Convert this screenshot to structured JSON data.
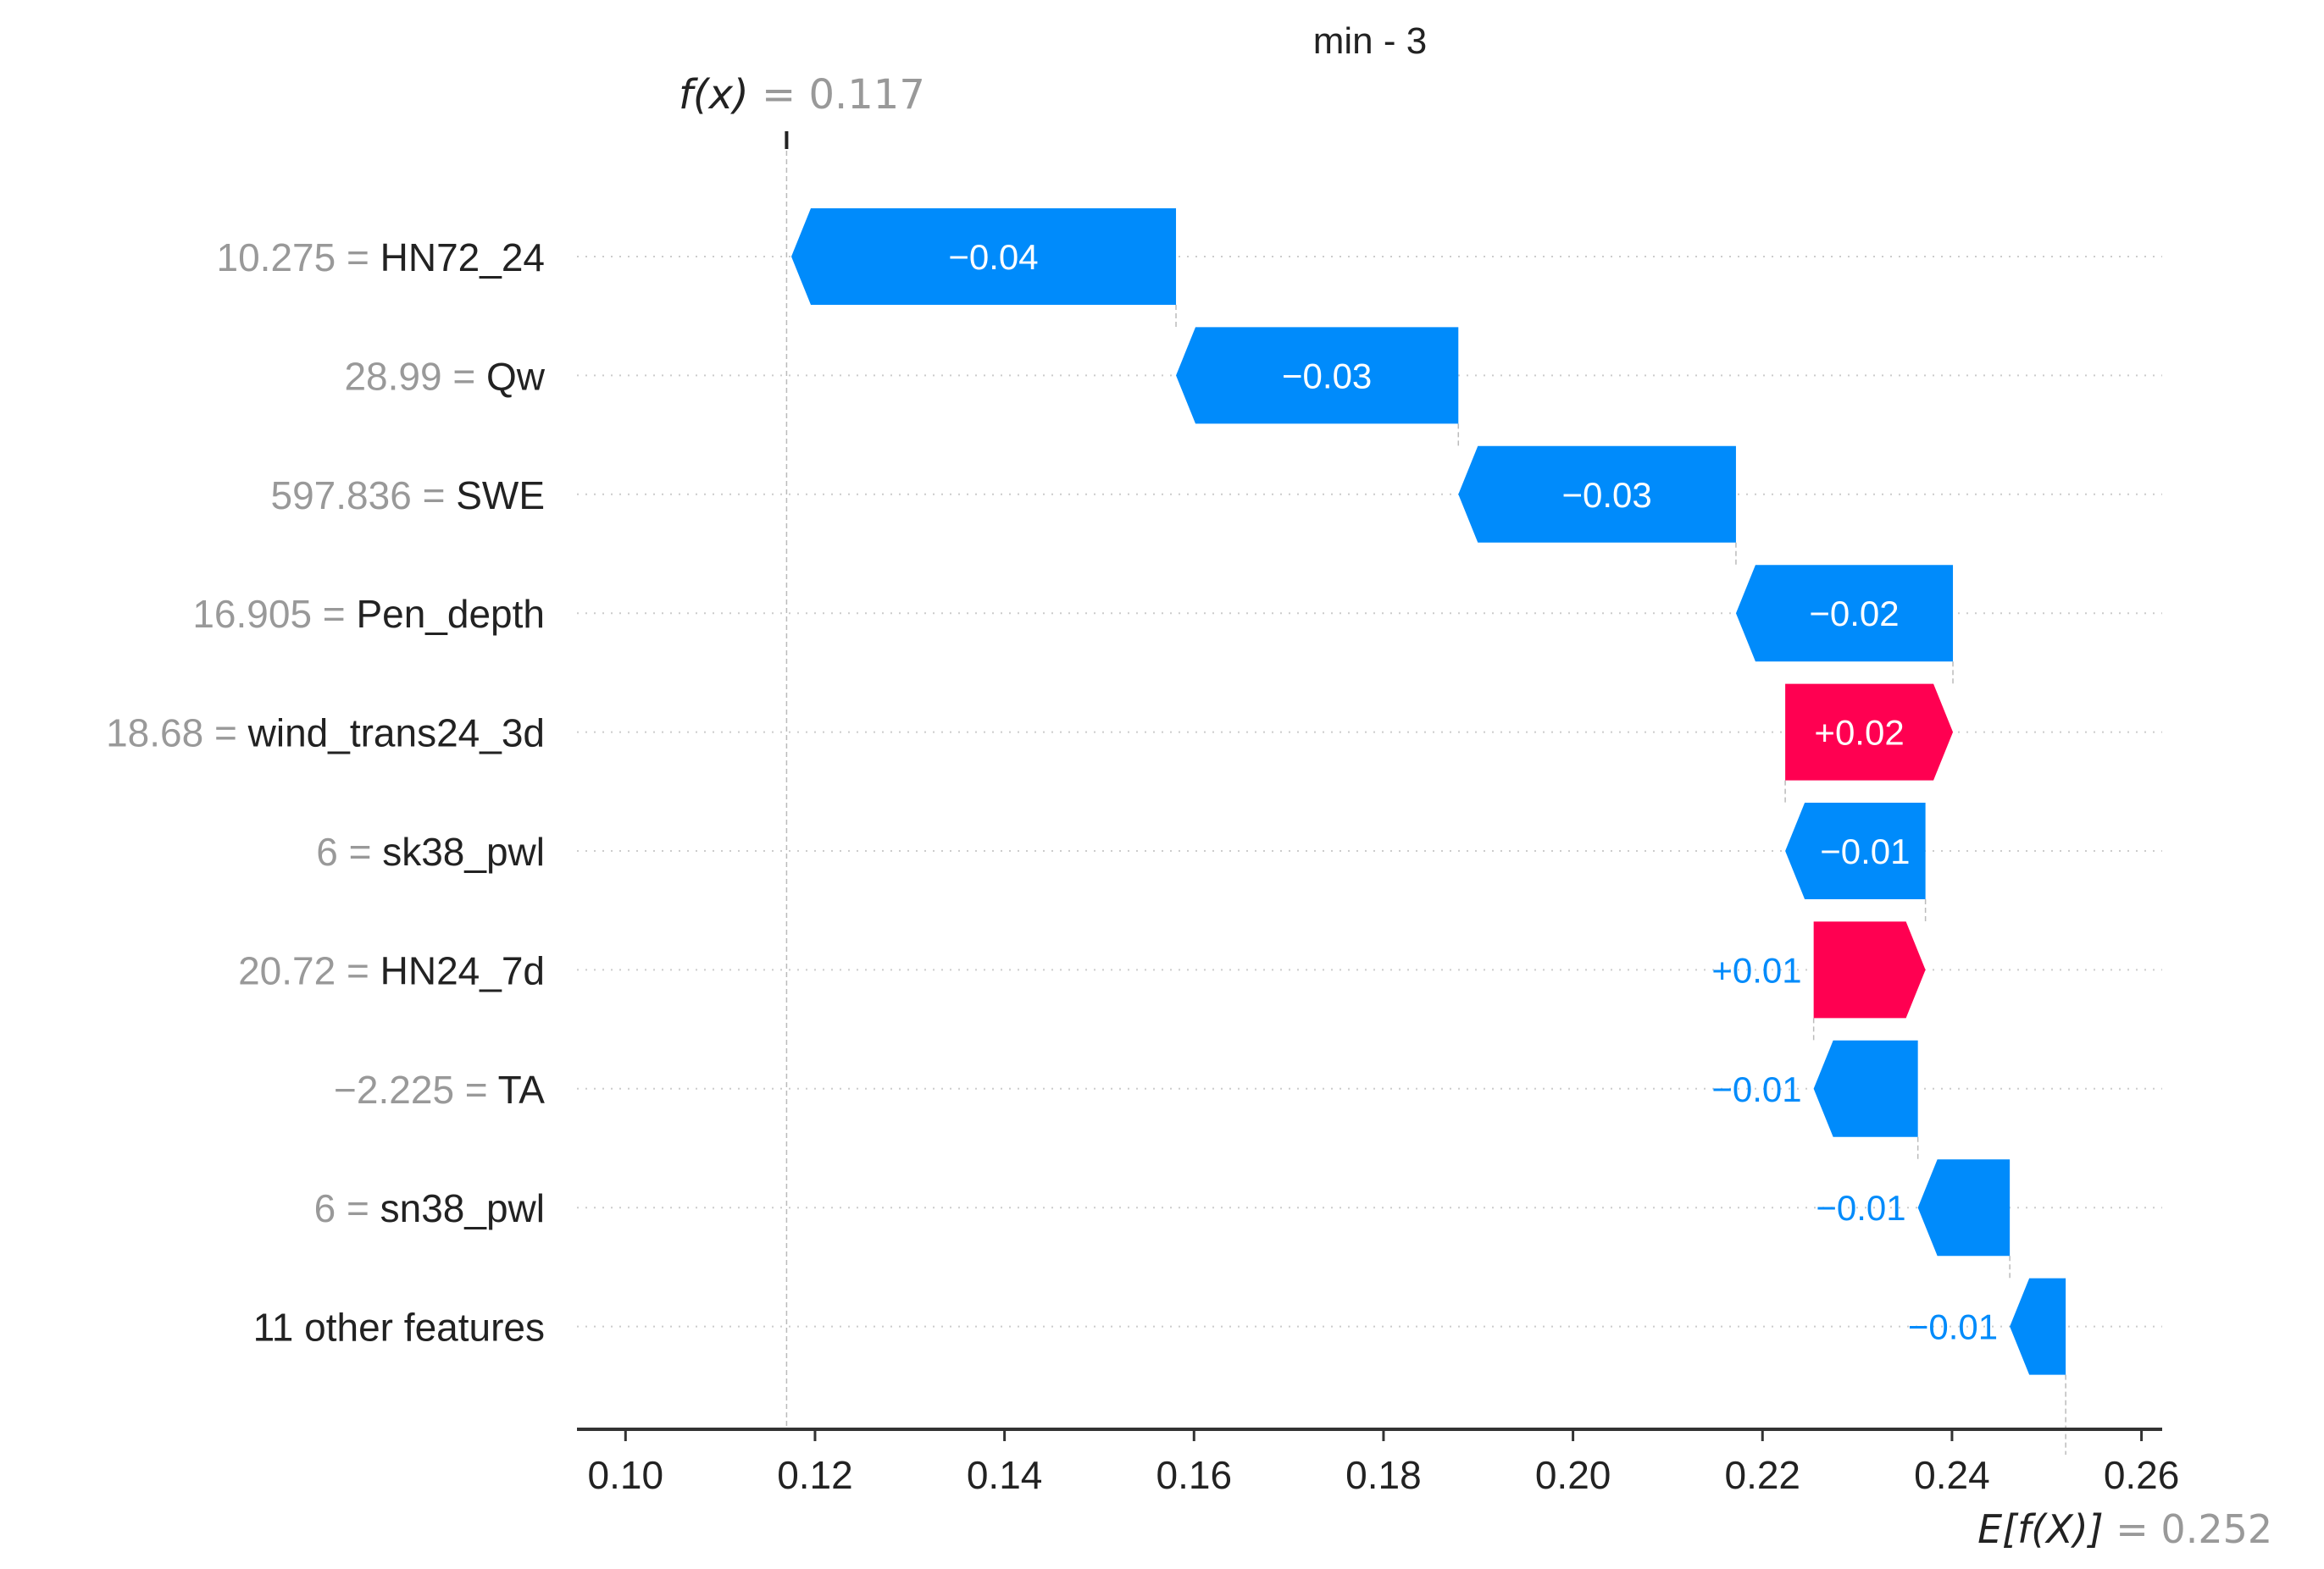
{
  "chart_data": {
    "type": "waterfall",
    "title": "min - 3",
    "base_value": 0.252,
    "output_value": 0.117,
    "fx_label": "f(x)",
    "fx_value_text": "= 0.117",
    "ex_label": "E[f(X)]",
    "ex_value_text": "= 0.252",
    "xlim": [
      0.095,
      0.262
    ],
    "xticks": [
      0.1,
      0.12,
      0.14,
      0.16,
      0.18,
      0.2,
      0.22,
      0.24,
      0.26
    ],
    "xtick_labels": [
      "0.10",
      "0.12",
      "0.14",
      "0.16",
      "0.18",
      "0.20",
      "0.22",
      "0.24",
      "0.26"
    ],
    "grid": "horizontal dotted",
    "features": [
      {
        "value": "10.275",
        "name": "HN72_24",
        "shap": -0.0406,
        "label": "−0.04"
      },
      {
        "value": "28.99",
        "name": "Qw",
        "shap": -0.0298,
        "label": "−0.03"
      },
      {
        "value": "597.836",
        "name": "SWE",
        "shap": -0.0293,
        "label": "−0.03"
      },
      {
        "value": "16.905",
        "name": "Pen_depth",
        "shap": -0.0229,
        "label": "−0.02"
      },
      {
        "value": "18.68",
        "name": "wind_trans24_3d",
        "shap": 0.0177,
        "label": "+0.02"
      },
      {
        "value": "6",
        "name": "sk38_pwl",
        "shap": -0.0148,
        "label": "−0.01"
      },
      {
        "value": "20.72",
        "name": "HN24_7d",
        "shap": 0.0118,
        "label": "+0.01"
      },
      {
        "value": "−2.225",
        "name": "TA",
        "shap": -0.011,
        "label": "−0.01"
      },
      {
        "value": "6",
        "name": "sn38_pwl",
        "shap": -0.0097,
        "label": "−0.01"
      },
      {
        "value": "",
        "name": "11 other features",
        "shap": -0.0059,
        "label": "−0.01"
      }
    ],
    "colors": {
      "negative": "#008bfb",
      "positive": "#ff0051",
      "value_text": "#999999",
      "name_text": "#222222"
    }
  }
}
